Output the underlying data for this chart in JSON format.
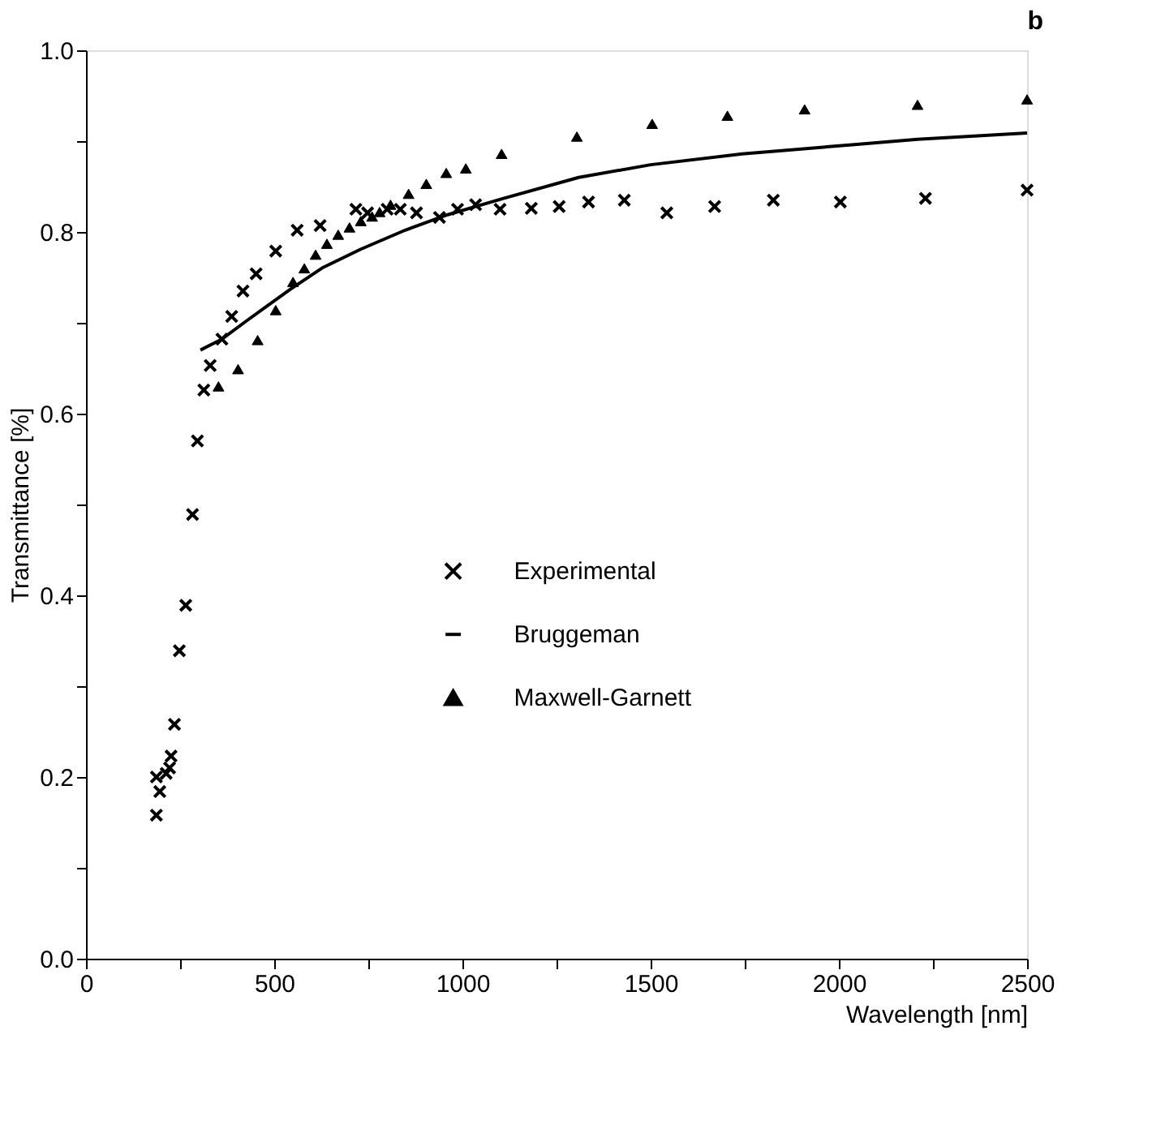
{
  "chart_data": {
    "type": "scatter",
    "xlabel": "Wavelength [nm]",
    "ylabel": "Transmittance [%]",
    "annotations": [
      "b"
    ],
    "xlim": [
      0,
      2500
    ],
    "ylim": [
      0,
      1.0
    ],
    "xticks": [
      0,
      {
        "value": 250,
        "label": null
      },
      500,
      {
        "value": 750,
        "label": null
      },
      1000,
      {
        "value": 1250,
        "label": null
      },
      1500,
      {
        "value": 1750,
        "label": null
      },
      2000,
      {
        "value": 2250,
        "label": null
      },
      2500
    ],
    "yticks": [
      {
        "value": 0,
        "label": "0.0"
      },
      {
        "value": 0.1,
        "label": null
      },
      0.2,
      {
        "value": 0.3,
        "label": null
      },
      0.4,
      {
        "value": 0.5,
        "label": null
      },
      0.6,
      {
        "value": 0.7,
        "label": null
      },
      0.8,
      {
        "value": 0.9,
        "label": null
      },
      {
        "value": 1.0,
        "label": "1.0"
      }
    ],
    "grid": false,
    "legend": "center",
    "series": [
      {
        "name": "Experimental",
        "marker": "cross",
        "color": "#000000",
        "x": [
          187,
          196,
          187,
          213,
          222,
          226,
          235,
          248,
          265,
          283,
          296,
          313,
          330,
          361,
          387,
          417,
          452,
          504,
          561,
          622,
          717,
          748,
          800,
          835,
          878,
          939,
          987,
          1035,
          1100,
          1183,
          1257,
          1335,
          1430,
          1543,
          1670,
          1826,
          2004,
          2230,
          2500
        ],
        "values": [
          0.158,
          0.184,
          0.2,
          0.204,
          0.21,
          0.223,
          0.258,
          0.339,
          0.389,
          0.489,
          0.57,
          0.626,
          0.653,
          0.682,
          0.707,
          0.735,
          0.754,
          0.779,
          0.802,
          0.807,
          0.825,
          0.821,
          0.825,
          0.825,
          0.821,
          0.816,
          0.825,
          0.83,
          0.825,
          0.826,
          0.828,
          0.833,
          0.835,
          0.821,
          0.828,
          0.835,
          0.833,
          0.837,
          0.846
        ]
      },
      {
        "name": "Bruggeman",
        "type": "line",
        "line_style": "solid",
        "color": "#000000",
        "x": [
          304,
          361,
          426,
          483,
          543,
          630,
          730,
          848,
          961,
          1109,
          1309,
          1500,
          1743,
          2035,
          2209,
          2500
        ],
        "values": [
          0.67,
          0.682,
          0.702,
          0.719,
          0.737,
          0.761,
          0.781,
          0.802,
          0.819,
          0.837,
          0.86,
          0.874,
          0.886,
          0.896,
          0.902,
          0.909
        ]
      },
      {
        "name": "Maxwell-Garnett",
        "marker": "triangle",
        "color": "#000000",
        "x": [
          352,
          404,
          456,
          504,
          550,
          580,
          610,
          640,
          670,
          700,
          730,
          760,
          780,
          809,
          857,
          904,
          957,
          1009,
          1104,
          1304,
          1504,
          1704,
          1909,
          2209,
          2500
        ],
        "values": [
          0.63,
          0.649,
          0.681,
          0.714,
          0.745,
          0.76,
          0.775,
          0.787,
          0.797,
          0.805,
          0.812,
          0.817,
          0.822,
          0.83,
          0.842,
          0.853,
          0.865,
          0.87,
          0.886,
          0.905,
          0.919,
          0.928,
          0.935,
          0.94,
          0.946
        ]
      }
    ]
  }
}
